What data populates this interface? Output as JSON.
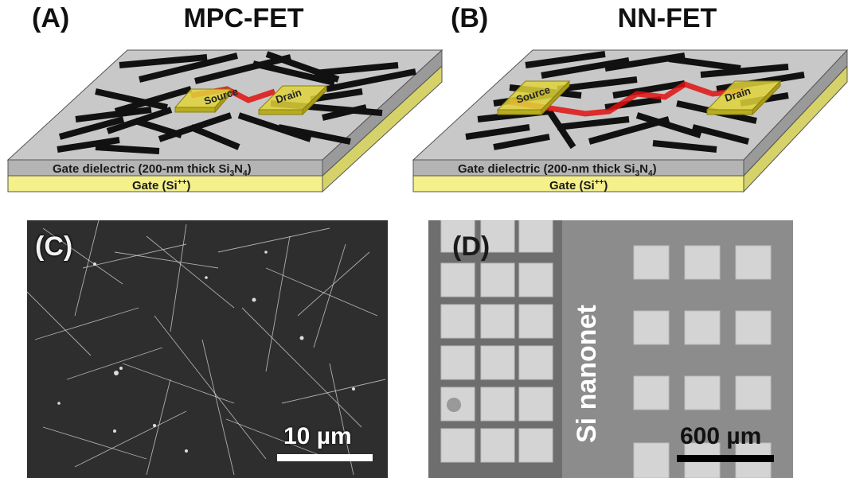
{
  "panels": {
    "a": {
      "letter": "(A)",
      "title": "MPC-FET"
    },
    "b": {
      "letter": "(B)",
      "title": "NN-FET"
    },
    "c": {
      "letter": "(C)",
      "scale_label": "10 µm"
    },
    "d": {
      "letter": "(D)",
      "scale_label": "600 µm",
      "vertical_label": "Si nanonet"
    }
  },
  "device": {
    "source_label": "Source",
    "drain_label": "Drain",
    "dielectric_label_prefix": "Gate dielectric (200-nm thick Si",
    "dielectric_sub_1": "3",
    "dielectric_mid": "N",
    "dielectric_sub_2": "4",
    "dielectric_suffix": ")",
    "gate_label_prefix": "Gate (Si",
    "gate_label_sup": "++",
    "gate_label_suffix": ")"
  },
  "colors": {
    "top_surface": "#c8c8c8",
    "dielectric": "#b4b4b4",
    "gate": "#f4f08a",
    "electrode": "#e0d43a",
    "nanowire": "#111111",
    "current_path": "#e01010"
  }
}
